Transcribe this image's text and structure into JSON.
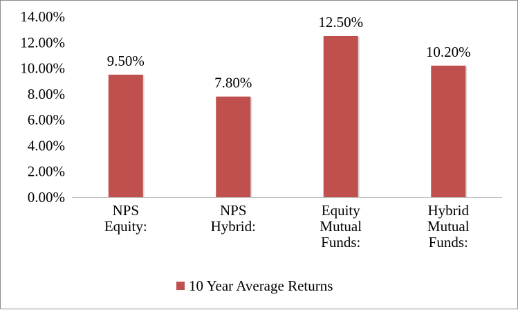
{
  "chart_data": {
    "type": "bar",
    "categories": [
      [
        "NPS",
        "Equity:"
      ],
      [
        "NPS",
        "Hybrid:"
      ],
      [
        "Equity",
        "Mutual",
        "Funds:"
      ],
      [
        "Hybrid",
        "Mutual",
        "Funds:"
      ]
    ],
    "series": [
      {
        "name": "10 Year Average Returns",
        "values": [
          9.5,
          7.8,
          12.5,
          10.2
        ],
        "data_labels": [
          "9.50%",
          "7.80%",
          "12.50%",
          "10.20%"
        ],
        "color": "#c0504d"
      }
    ],
    "ylim": [
      0,
      14
    ],
    "yticks": [
      "0.00%",
      "2.00%",
      "4.00%",
      "6.00%",
      "8.00%",
      "10.00%",
      "12.00%",
      "14.00%"
    ],
    "grid": false,
    "legend": "bottom"
  }
}
